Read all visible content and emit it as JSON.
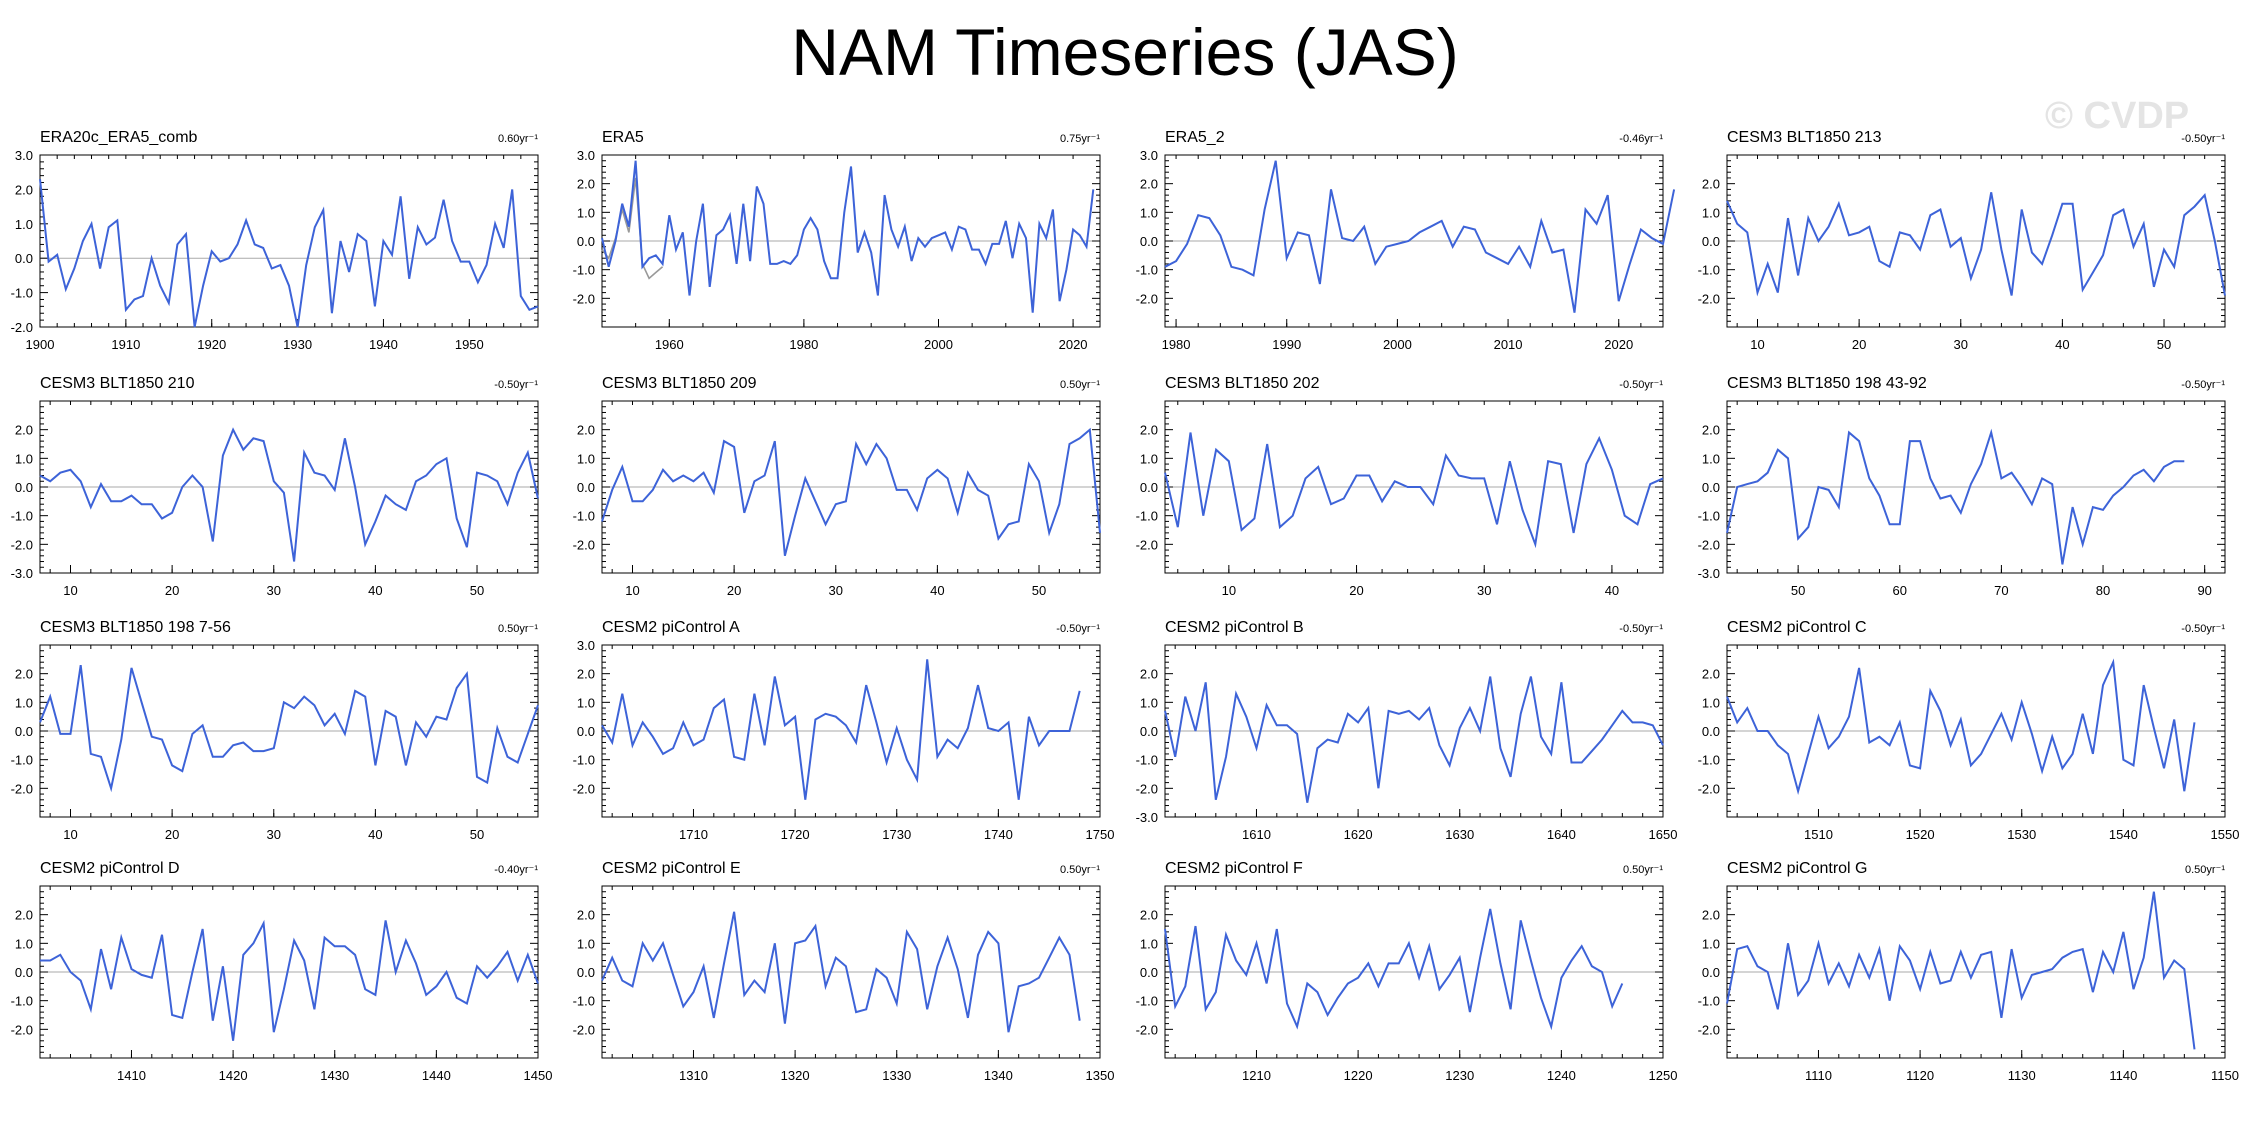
{
  "title": "NAM Timeseries (JAS)",
  "watermark": "© CVDP",
  "colors": {
    "series": "#3d63d8",
    "secondary": "#999999",
    "zero_line": "#aaaaaa"
  },
  "chart_data": [
    {
      "type": "line",
      "title": "ERA20c_ERA5_comb",
      "trend": "0.60yr⁻¹",
      "xlim": [
        1900,
        1958
      ],
      "ylim": [
        -2.0,
        3.0
      ],
      "xticks": [
        1900,
        1910,
        1920,
        1930,
        1940,
        1950
      ],
      "yticks": [
        -2.0,
        -1.0,
        0.0,
        1.0,
        2.0,
        3.0
      ],
      "x_start": 1900,
      "values": [
        2.3,
        -0.1,
        0.1,
        -0.9,
        -0.3,
        0.5,
        1.0,
        -0.3,
        0.9,
        1.1,
        -1.5,
        -1.2,
        -1.1,
        0.0,
        -0.8,
        -1.3,
        0.4,
        0.7,
        -2.0,
        -0.8,
        0.2,
        -0.1,
        0.0,
        0.4,
        1.1,
        0.4,
        0.3,
        -0.3,
        -0.2,
        -0.8,
        -2.0,
        -0.2,
        0.9,
        1.4,
        -1.6,
        0.5,
        -0.4,
        0.7,
        0.5,
        -1.4,
        0.5,
        0.1,
        1.8,
        -0.6,
        0.9,
        0.4,
        0.6,
        1.7,
        0.5,
        -0.1,
        -0.1,
        -0.7,
        -0.2,
        1.0,
        0.3,
        2.0,
        -1.1,
        -1.5,
        -1.4
      ]
    },
    {
      "type": "line",
      "title": "ERA5",
      "trend": "0.75yr⁻¹",
      "xlim": [
        1950,
        2024
      ],
      "ylim": [
        -3.0,
        3.0
      ],
      "xticks": [
        1960,
        1980,
        2000,
        2020
      ],
      "yticks": [
        -2.0,
        -1.0,
        0.0,
        1.0,
        2.0,
        3.0
      ],
      "x_start": 1950,
      "values": [
        0.1,
        -0.9,
        0.0,
        1.3,
        0.5,
        2.8,
        -0.9,
        -0.6,
        -0.5,
        -0.8,
        0.9,
        -0.3,
        0.3,
        -1.9,
        0.0,
        1.3,
        -1.6,
        0.2,
        0.4,
        0.9,
        -0.8,
        1.3,
        -0.7,
        1.9,
        1.3,
        -0.8,
        -0.8,
        -0.7,
        -0.8,
        -0.5,
        0.4,
        0.8,
        0.4,
        -0.7,
        -1.3,
        -1.3,
        1.0,
        2.6,
        -0.4,
        0.3,
        -0.4,
        -1.9,
        1.6,
        0.4,
        -0.2,
        0.5,
        -0.7,
        0.1,
        -0.2,
        0.1,
        0.2,
        0.3,
        -0.3,
        0.5,
        0.4,
        -0.3,
        -0.3,
        -0.8,
        -0.1,
        -0.1,
        0.7,
        -0.6,
        0.6,
        0.1,
        -2.5,
        0.6,
        0.1,
        1.1,
        -2.1,
        -1.0,
        0.4,
        0.2,
        -0.2,
        1.8
      ],
      "series2": {
        "x_start": 1950,
        "values": [
          -0.3,
          -0.6,
          0.1,
          1.1,
          0.3,
          2.2,
          -0.8,
          -1.3,
          -1.1,
          -0.9
        ]
      }
    },
    {
      "type": "line",
      "title": "ERA5_2",
      "trend": "-0.46yr⁻¹",
      "xlim": [
        1979,
        2024
      ],
      "ylim": [
        -3.0,
        3.0
      ],
      "xticks": [
        1980,
        1990,
        2000,
        2010,
        2020
      ],
      "yticks": [
        -2.0,
        -1.0,
        0.0,
        1.0,
        2.0,
        3.0
      ],
      "x_start": 1979,
      "values": [
        -0.9,
        -0.7,
        -0.1,
        0.9,
        0.8,
        0.2,
        -0.9,
        -1.0,
        -1.2,
        1.1,
        2.8,
        -0.6,
        0.3,
        0.2,
        -1.5,
        1.8,
        0.1,
        0.0,
        0.5,
        -0.8,
        -0.2,
        -0.1,
        0.0,
        0.3,
        0.5,
        0.7,
        -0.2,
        0.5,
        0.4,
        -0.4,
        -0.6,
        -0.8,
        -0.2,
        -0.9,
        0.7,
        -0.4,
        -0.3,
        -2.5,
        1.1,
        0.6,
        1.6,
        -2.1,
        -0.8,
        0.4,
        0.1,
        -0.1,
        1.8
      ]
    },
    {
      "type": "line",
      "title": "CESM3 BLT1850 213",
      "trend": "-0.50yr⁻¹",
      "xlim": [
        7,
        56
      ],
      "ylim": [
        -3.0,
        3.0
      ],
      "xticks": [
        10,
        20,
        30,
        40,
        50
      ],
      "yticks": [
        -2.0,
        -1.0,
        0.0,
        1.0,
        2.0
      ],
      "x_start": 7,
      "values": [
        1.4,
        0.6,
        0.3,
        -1.8,
        -0.8,
        -1.8,
        0.8,
        -1.2,
        0.8,
        0.0,
        0.5,
        1.3,
        0.2,
        0.3,
        0.5,
        -0.7,
        -0.9,
        0.3,
        0.2,
        -0.3,
        0.9,
        1.1,
        -0.2,
        0.1,
        -1.3,
        -0.3,
        1.7,
        -0.3,
        -1.9,
        1.1,
        -0.4,
        -0.8,
        0.2,
        1.3,
        1.3,
        -1.7,
        -1.1,
        -0.5,
        0.9,
        1.1,
        -0.2,
        0.6,
        -1.6,
        -0.3,
        -0.9,
        0.9,
        1.2,
        1.6,
        0.0,
        -1.9
      ]
    },
    {
      "type": "line",
      "title": "CESM3 BLT1850 210",
      "trend": "-0.50yr⁻¹",
      "xlim": [
        7,
        56
      ],
      "ylim": [
        -3.0,
        3.0
      ],
      "xticks": [
        10,
        20,
        30,
        40,
        50
      ],
      "yticks": [
        -3.0,
        -2.0,
        -1.0,
        0.0,
        1.0,
        2.0
      ],
      "x_start": 7,
      "values": [
        0.4,
        0.2,
        0.5,
        0.6,
        0.2,
        -0.7,
        0.1,
        -0.5,
        -0.5,
        -0.3,
        -0.6,
        -0.6,
        -1.1,
        -0.9,
        0.0,
        0.4,
        0.0,
        -1.9,
        1.1,
        2.0,
        1.3,
        1.7,
        1.6,
        0.2,
        -0.2,
        -2.6,
        1.2,
        0.5,
        0.4,
        -0.1,
        1.7,
        0.0,
        -2.0,
        -1.2,
        -0.3,
        -0.6,
        -0.8,
        0.2,
        0.4,
        0.8,
        1.0,
        -1.1,
        -2.1,
        0.5,
        0.4,
        0.2,
        -0.6,
        0.5,
        1.2,
        -0.4
      ]
    },
    {
      "type": "line",
      "title": "CESM3 BLT1850 209",
      "trend": "0.50yr⁻¹",
      "xlim": [
        7,
        56
      ],
      "ylim": [
        -3.0,
        3.0
      ],
      "xticks": [
        10,
        20,
        30,
        40,
        50
      ],
      "yticks": [
        -2.0,
        -1.0,
        0.0,
        1.0,
        2.0
      ],
      "x_start": 7,
      "values": [
        -1.2,
        -0.1,
        0.7,
        -0.5,
        -0.5,
        -0.1,
        0.6,
        0.2,
        0.4,
        0.2,
        0.5,
        -0.2,
        1.6,
        1.4,
        -0.9,
        0.2,
        0.4,
        1.6,
        -2.4,
        -1.0,
        0.3,
        -0.5,
        -1.3,
        -0.6,
        -0.5,
        1.5,
        0.8,
        1.5,
        1.0,
        -0.1,
        -0.1,
        -0.8,
        0.3,
        0.6,
        0.3,
        -0.9,
        0.5,
        -0.1,
        -0.3,
        -1.8,
        -1.3,
        -1.2,
        0.8,
        0.2,
        -1.6,
        -0.6,
        1.5,
        1.7,
        2.0,
        -1.6
      ]
    },
    {
      "type": "line",
      "title": "CESM3 BLT1850 202",
      "trend": "-0.50yr⁻¹",
      "xlim": [
        5,
        44
      ],
      "ylim": [
        -3.0,
        3.0
      ],
      "xticks": [
        10,
        20,
        30,
        40
      ],
      "yticks": [
        -2.0,
        -1.0,
        0.0,
        1.0,
        2.0
      ],
      "x_start": 5,
      "values": [
        0.5,
        -1.4,
        1.9,
        -1.0,
        1.3,
        0.9,
        -1.5,
        -1.1,
        1.5,
        -1.4,
        -1.0,
        0.3,
        0.7,
        -0.6,
        -0.4,
        0.4,
        0.4,
        -0.5,
        0.2,
        0.0,
        0.0,
        -0.6,
        1.1,
        0.4,
        0.3,
        0.3,
        -1.3,
        0.9,
        -0.8,
        -2.0,
        0.9,
        0.8,
        -1.6,
        0.8,
        1.7,
        0.6,
        -1.0,
        -1.3,
        0.1,
        0.3
      ]
    },
    {
      "type": "line",
      "title": "CESM3 BLT1850 198 43-92",
      "trend": "-0.50yr⁻¹",
      "xlim": [
        43,
        92
      ],
      "ylim": [
        -3.0,
        3.0
      ],
      "xticks": [
        50,
        60,
        70,
        80,
        90
      ],
      "yticks": [
        -3.0,
        -2.0,
        -1.0,
        0.0,
        1.0,
        2.0
      ],
      "x_start": 43,
      "values": [
        -1.6,
        0.0,
        0.1,
        0.2,
        0.5,
        1.3,
        1.0,
        -1.8,
        -1.4,
        0.0,
        -0.1,
        -0.7,
        1.9,
        1.6,
        0.3,
        -0.3,
        -1.3,
        -1.3,
        1.6,
        1.6,
        0.3,
        -0.4,
        -0.3,
        -0.9,
        0.1,
        0.8,
        1.9,
        0.3,
        0.5,
        0.0,
        -0.6,
        0.3,
        0.1,
        -2.7,
        -0.7,
        -2.0,
        -0.7,
        -0.8,
        -0.3,
        0.0,
        0.4,
        0.6,
        0.2,
        0.7,
        0.9,
        0.9
      ]
    },
    {
      "type": "line",
      "title": "CESM3 BLT1850 198 7-56",
      "trend": "0.50yr⁻¹",
      "xlim": [
        7,
        56
      ],
      "ylim": [
        -3.0,
        3.0
      ],
      "xticks": [
        10,
        20,
        30,
        40,
        50
      ],
      "yticks": [
        -2.0,
        -1.0,
        0.0,
        1.0,
        2.0
      ],
      "x_start": 7,
      "values": [
        0.3,
        1.2,
        -0.1,
        -0.1,
        2.3,
        -0.8,
        -0.9,
        -2.0,
        -0.3,
        2.2,
        1.0,
        -0.2,
        -0.3,
        -1.2,
        -1.4,
        -0.1,
        0.2,
        -0.9,
        -0.9,
        -0.5,
        -0.4,
        -0.7,
        -0.7,
        -0.6,
        1.0,
        0.8,
        1.2,
        0.9,
        0.2,
        0.6,
        -0.1,
        1.4,
        1.2,
        -1.2,
        0.7,
        0.5,
        -1.2,
        0.3,
        -0.2,
        0.5,
        0.4,
        1.5,
        2.0,
        -1.6,
        -1.8,
        0.1,
        -0.9,
        -1.1,
        -0.1,
        0.9
      ]
    },
    {
      "type": "line",
      "title": "CESM2 piControl A",
      "trend": "-0.50yr⁻¹",
      "xlim": [
        1701,
        1750
      ],
      "ylim": [
        -3.0,
        3.0
      ],
      "xticks": [
        1710,
        1720,
        1730,
        1740,
        1750
      ],
      "yticks": [
        -2.0,
        -1.0,
        0.0,
        1.0,
        2.0,
        3.0
      ],
      "x_start": 1701,
      "values": [
        0.2,
        -0.4,
        1.3,
        -0.5,
        0.3,
        -0.2,
        -0.8,
        -0.6,
        0.3,
        -0.5,
        -0.3,
        0.8,
        1.1,
        -0.9,
        -1.0,
        1.3,
        -0.5,
        1.9,
        0.2,
        0.5,
        -2.4,
        0.4,
        0.6,
        0.5,
        0.2,
        -0.4,
        1.6,
        0.3,
        -1.1,
        0.1,
        -1.0,
        -1.7,
        2.5,
        -0.9,
        -0.3,
        -0.6,
        0.1,
        1.6,
        0.1,
        0.0,
        0.3,
        -2.4,
        0.5,
        -0.5,
        0.0,
        0.0,
        0.0,
        1.4
      ]
    },
    {
      "type": "line",
      "title": "CESM2 piControl B",
      "trend": "-0.50yr⁻¹",
      "xlim": [
        1601,
        1650
      ],
      "ylim": [
        -3.0,
        3.0
      ],
      "xticks": [
        1610,
        1620,
        1630,
        1640,
        1650
      ],
      "yticks": [
        -3.0,
        -2.0,
        -1.0,
        0.0,
        1.0,
        2.0
      ],
      "x_start": 1601,
      "values": [
        0.7,
        -0.9,
        1.2,
        0.0,
        1.7,
        -2.4,
        -0.9,
        1.3,
        0.5,
        -0.6,
        0.9,
        0.2,
        0.2,
        -0.1,
        -2.5,
        -0.6,
        -0.3,
        -0.4,
        0.6,
        0.3,
        0.8,
        -2.0,
        0.7,
        0.6,
        0.7,
        0.4,
        0.8,
        -0.5,
        -1.2,
        0.1,
        0.8,
        0.0,
        1.9,
        -0.6,
        -1.6,
        0.6,
        1.9,
        -0.2,
        -0.8,
        1.7,
        -1.1,
        -1.1,
        -0.7,
        -0.3,
        0.2,
        0.7,
        0.3,
        0.3,
        0.2,
        -0.5
      ]
    },
    {
      "type": "line",
      "title": "CESM2 piControl C",
      "trend": "-0.50yr⁻¹",
      "xlim": [
        1501,
        1550
      ],
      "ylim": [
        -3.0,
        3.0
      ],
      "xticks": [
        1510,
        1520,
        1530,
        1540,
        1550
      ],
      "yticks": [
        -2.0,
        -1.0,
        0.0,
        1.0,
        2.0
      ],
      "x_start": 1501,
      "values": [
        1.2,
        0.3,
        0.8,
        0.0,
        0.0,
        -0.5,
        -0.8,
        -2.1,
        -0.8,
        0.5,
        -0.6,
        -0.2,
        0.5,
        2.2,
        -0.4,
        -0.2,
        -0.5,
        0.3,
        -1.2,
        -1.3,
        1.4,
        0.7,
        -0.5,
        0.4,
        -1.2,
        -0.8,
        -0.1,
        0.6,
        -0.3,
        1.0,
        -0.1,
        -1.4,
        -0.2,
        -1.3,
        -0.8,
        0.6,
        -0.8,
        1.6,
        2.4,
        -1.0,
        -1.2,
        1.6,
        0.1,
        -1.3,
        0.4,
        -2.1,
        0.3
      ]
    },
    {
      "type": "line",
      "title": "CESM2 piControl D",
      "trend": "-0.40yr⁻¹",
      "xlim": [
        1401,
        1450
      ],
      "ylim": [
        -3.0,
        3.0
      ],
      "xticks": [
        1410,
        1420,
        1430,
        1440,
        1450
      ],
      "yticks": [
        -2.0,
        -1.0,
        0.0,
        1.0,
        2.0
      ],
      "x_start": 1401,
      "values": [
        0.4,
        0.4,
        0.6,
        0.0,
        -0.3,
        -1.3,
        0.8,
        -0.6,
        1.2,
        0.1,
        -0.1,
        -0.2,
        1.3,
        -1.5,
        -1.6,
        0.0,
        1.5,
        -1.7,
        0.2,
        -2.4,
        0.6,
        1.0,
        1.7,
        -2.1,
        -0.6,
        1.1,
        0.4,
        -1.3,
        1.2,
        0.9,
        0.9,
        0.6,
        -0.6,
        -0.8,
        1.8,
        0.0,
        1.1,
        0.3,
        -0.8,
        -0.5,
        0.0,
        -0.9,
        -1.1,
        0.2,
        -0.2,
        0.2,
        0.7,
        -0.3,
        0.6,
        -0.4
      ]
    },
    {
      "type": "line",
      "title": "CESM2 piControl E",
      "trend": "0.50yr⁻¹",
      "xlim": [
        1301,
        1350
      ],
      "ylim": [
        -3.0,
        3.0
      ],
      "xticks": [
        1310,
        1320,
        1330,
        1340,
        1350
      ],
      "yticks": [
        -2.0,
        -1.0,
        0.0,
        1.0,
        2.0
      ],
      "x_start": 1301,
      "values": [
        -0.3,
        0.5,
        -0.3,
        -0.5,
        1.0,
        0.4,
        1.0,
        -0.1,
        -1.2,
        -0.7,
        0.2,
        -1.6,
        0.3,
        2.1,
        -0.8,
        -0.3,
        -0.7,
        1.0,
        -1.8,
        1.0,
        1.1,
        1.6,
        -0.5,
        0.5,
        0.2,
        -1.4,
        -1.3,
        0.1,
        -0.2,
        -1.1,
        1.4,
        0.8,
        -1.3,
        0.2,
        1.2,
        0.1,
        -1.6,
        0.6,
        1.4,
        1.0,
        -2.1,
        -0.5,
        -0.4,
        -0.2,
        0.5,
        1.2,
        0.6,
        -1.7
      ]
    },
    {
      "type": "line",
      "title": "CESM2 piControl F",
      "trend": "0.50yr⁻¹",
      "xlim": [
        1201,
        1250
      ],
      "ylim": [
        -3.0,
        3.0
      ],
      "xticks": [
        1210,
        1220,
        1230,
        1240,
        1250
      ],
      "yticks": [
        -2.0,
        -1.0,
        0.0,
        1.0,
        2.0
      ],
      "x_start": 1201,
      "values": [
        1.5,
        -1.2,
        -0.5,
        1.6,
        -1.3,
        -0.7,
        1.3,
        0.4,
        -0.1,
        1.0,
        -0.4,
        1.5,
        -1.1,
        -1.9,
        -0.4,
        -0.7,
        -1.5,
        -0.9,
        -0.4,
        -0.2,
        0.3,
        -0.5,
        0.3,
        0.3,
        1.0,
        -0.2,
        0.9,
        -0.6,
        -0.1,
        0.5,
        -1.4,
        0.5,
        2.2,
        0.3,
        -1.3,
        1.8,
        0.4,
        -0.9,
        -1.9,
        -0.2,
        0.4,
        0.9,
        0.2,
        0.0,
        -1.2,
        -0.4
      ]
    },
    {
      "type": "line",
      "title": "CESM2 piControl G",
      "trend": "0.50yr⁻¹",
      "xlim": [
        1101,
        1150
      ],
      "ylim": [
        -3.0,
        3.0
      ],
      "xticks": [
        1110,
        1120,
        1130,
        1140,
        1150
      ],
      "yticks": [
        -2.0,
        -1.0,
        0.0,
        1.0,
        2.0
      ],
      "x_start": 1101,
      "values": [
        -1.1,
        0.8,
        0.9,
        0.2,
        0.0,
        -1.3,
        1.0,
        -0.8,
        -0.3,
        1.0,
        -0.4,
        0.3,
        -0.5,
        0.6,
        -0.2,
        0.8,
        -1.0,
        0.9,
        0.4,
        -0.6,
        0.7,
        -0.4,
        -0.3,
        0.7,
        -0.2,
        0.6,
        0.7,
        -1.6,
        0.8,
        -0.9,
        -0.1,
        0.0,
        0.1,
        0.5,
        0.7,
        0.8,
        -0.7,
        0.7,
        0.0,
        1.4,
        -0.6,
        0.5,
        2.8,
        -0.2,
        0.4,
        0.1,
        -2.7
      ]
    }
  ]
}
